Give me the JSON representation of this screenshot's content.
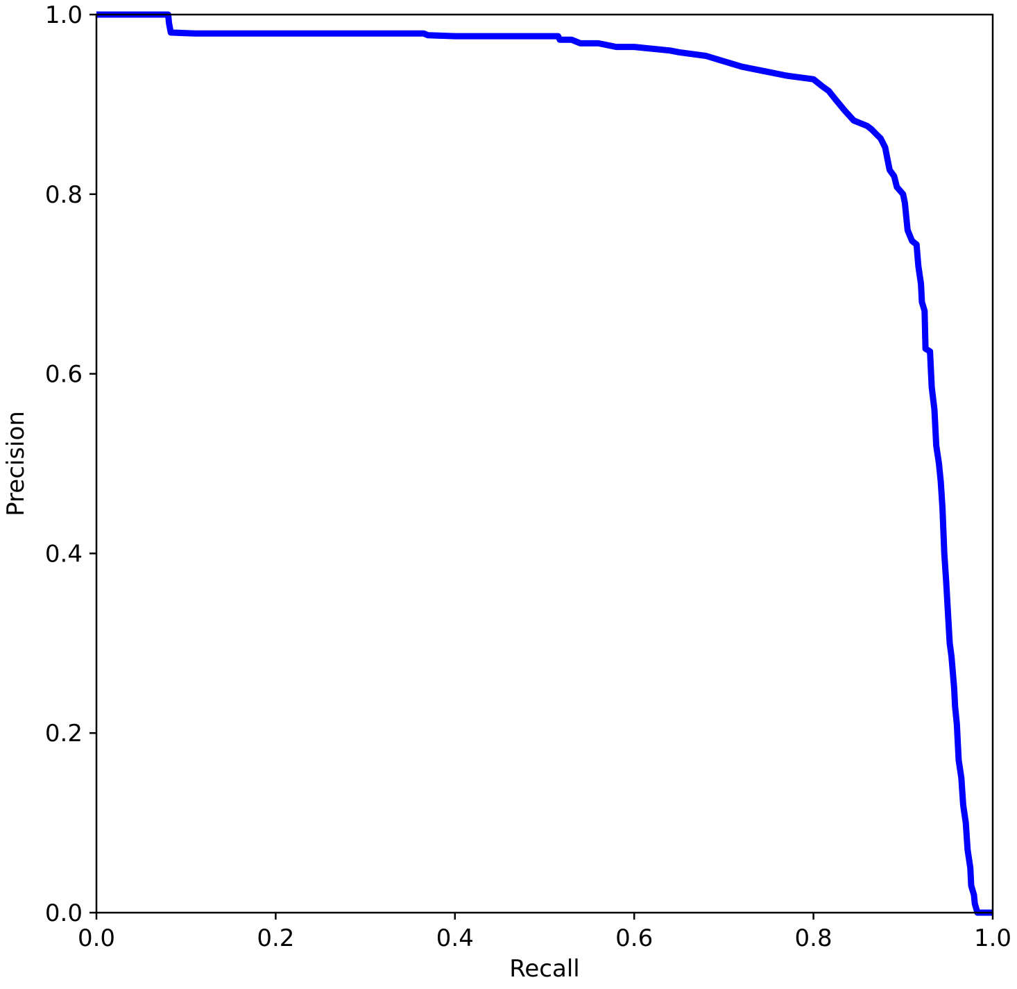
{
  "chart_data": {
    "type": "line",
    "title": "",
    "xlabel": "Recall",
    "ylabel": "Precision",
    "xlim": [
      0.0,
      1.0
    ],
    "ylim": [
      0.0,
      1.0
    ],
    "xticks": [
      "0.0",
      "0.2",
      "0.4",
      "0.6",
      "0.8",
      "1.0"
    ],
    "yticks": [
      "0.0",
      "0.2",
      "0.4",
      "0.6",
      "0.8",
      "1.0"
    ],
    "grid": false,
    "legend": "none",
    "series": [
      {
        "color": "#0000ff",
        "x": [
          0.0,
          0.08,
          0.081,
          0.083,
          0.11,
          0.2,
          0.3,
          0.365,
          0.37,
          0.4,
          0.5,
          0.515,
          0.517,
          0.53,
          0.54,
          0.56,
          0.58,
          0.6,
          0.64,
          0.65,
          0.68,
          0.7,
          0.72,
          0.75,
          0.77,
          0.8,
          0.81,
          0.817,
          0.825,
          0.835,
          0.845,
          0.86,
          0.865,
          0.87,
          0.875,
          0.88,
          0.882,
          0.885,
          0.89,
          0.893,
          0.9,
          0.902,
          0.905,
          0.91,
          0.915,
          0.917,
          0.92,
          0.921,
          0.924,
          0.925,
          0.93,
          0.932,
          0.935,
          0.937,
          0.94,
          0.942,
          0.944,
          0.946,
          0.948,
          0.95,
          0.952,
          0.954,
          0.957,
          0.958,
          0.96,
          0.962,
          0.965,
          0.967,
          0.97,
          0.972,
          0.975,
          0.976,
          0.979,
          0.98,
          0.983,
          0.99,
          0.992,
          1.0
        ],
        "values": [
          1.0,
          1.0,
          0.99,
          0.98,
          0.979,
          0.979,
          0.979,
          0.979,
          0.977,
          0.976,
          0.976,
          0.976,
          0.972,
          0.972,
          0.968,
          0.968,
          0.964,
          0.964,
          0.96,
          0.958,
          0.954,
          0.948,
          0.942,
          0.936,
          0.932,
          0.928,
          0.92,
          0.915,
          0.905,
          0.893,
          0.882,
          0.876,
          0.872,
          0.867,
          0.862,
          0.852,
          0.842,
          0.827,
          0.82,
          0.808,
          0.8,
          0.79,
          0.76,
          0.748,
          0.744,
          0.72,
          0.7,
          0.68,
          0.67,
          0.628,
          0.625,
          0.585,
          0.56,
          0.52,
          0.5,
          0.48,
          0.45,
          0.4,
          0.37,
          0.335,
          0.3,
          0.285,
          0.25,
          0.23,
          0.21,
          0.17,
          0.15,
          0.12,
          0.1,
          0.07,
          0.05,
          0.03,
          0.02,
          0.01,
          0.0,
          0.0,
          0.0,
          0.0
        ]
      }
    ]
  }
}
